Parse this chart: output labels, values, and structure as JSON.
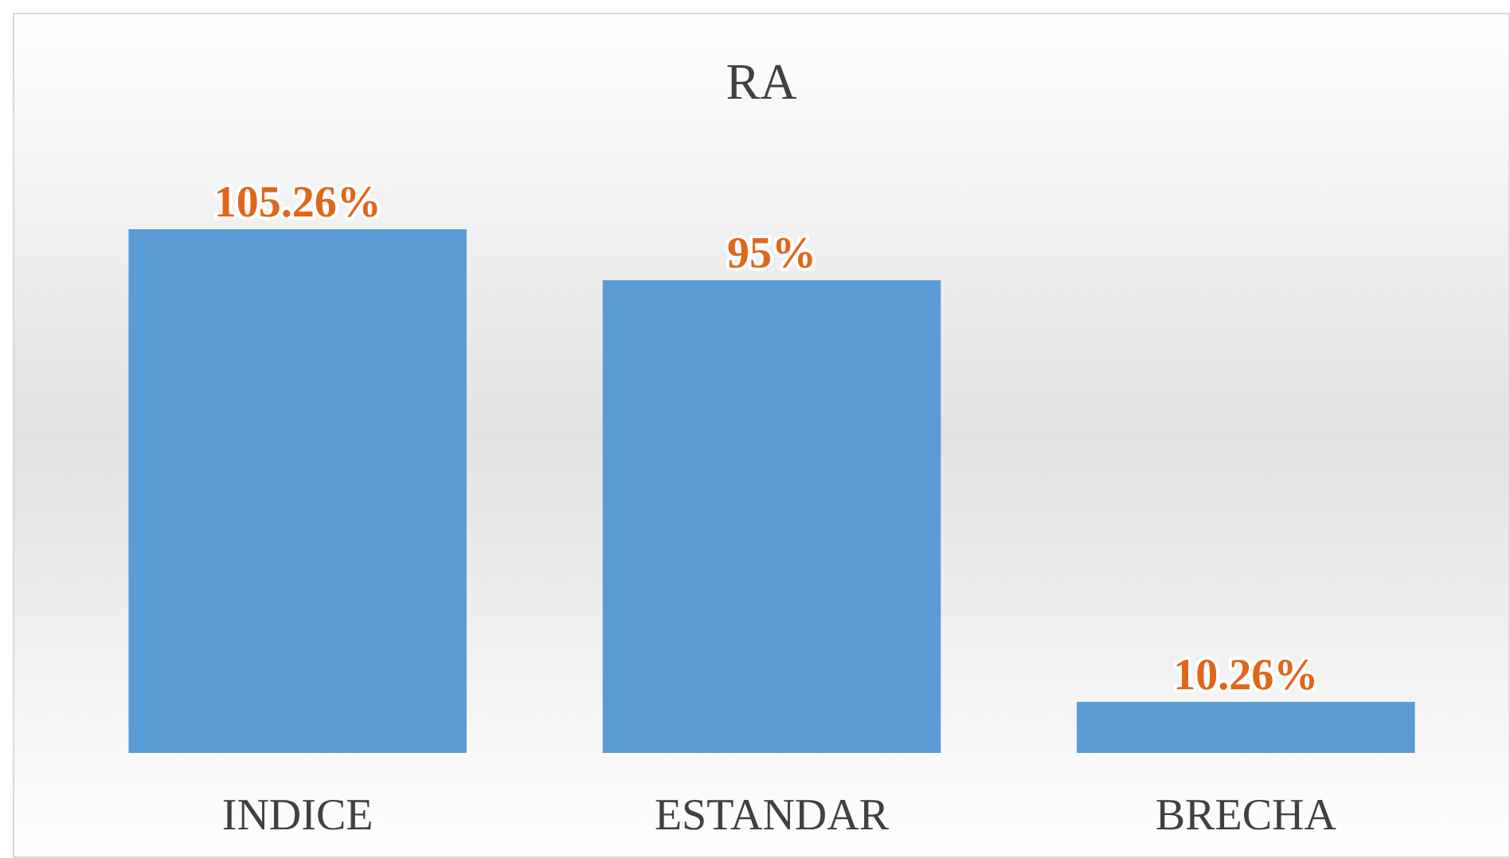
{
  "chart_data": {
    "type": "bar",
    "title": "RA",
    "categories": [
      "INDICE",
      "ESTANDAR",
      "BRECHA"
    ],
    "values": [
      105.26,
      95,
      10.26
    ],
    "color": "#5b9bd5",
    "value_labels": [
      "105.26%",
      "95%",
      "10.26%"
    ]
  }
}
